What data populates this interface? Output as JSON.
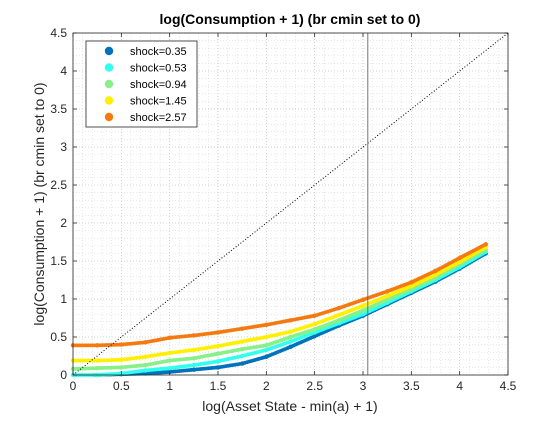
{
  "chart_data": {
    "type": "scatter",
    "title": "log(Consumption + 1) (br cmin set to 0)",
    "xlabel": "log(Asset State - min(a) + 1)",
    "ylabel": "log(Consumption + 1) (br cmin set to 0)",
    "xlim": [
      0,
      4.5
    ],
    "ylim": [
      0,
      4.5
    ],
    "xticks": [
      "0",
      "0.5",
      "1",
      "1.5",
      "2",
      "2.5",
      "3",
      "3.5",
      "4",
      "4.5"
    ],
    "yticks": [
      "0",
      "0.5",
      "1",
      "1.5",
      "2",
      "2.5",
      "3",
      "3.5",
      "4",
      "4.5"
    ],
    "grid": "on (major and minor, dotted)",
    "legend_position": "top-left",
    "reference_lines": {
      "diagonal_45_degree": true,
      "vertical_line_x": 3.05
    },
    "x_points_shared": [
      0.0,
      0.25,
      0.5,
      0.75,
      1.0,
      1.25,
      1.5,
      1.75,
      2.0,
      2.25,
      2.5,
      2.75,
      3.0,
      3.25,
      3.5,
      3.75,
      4.0,
      4.27
    ],
    "series": [
      {
        "name": "shock=0.35",
        "color": "#0072BD",
        "x_start": 0.22,
        "y": [
          0.0,
          0.0,
          0.01,
          0.02,
          0.04,
          0.07,
          0.1,
          0.15,
          0.24,
          0.37,
          0.51,
          0.65,
          0.78,
          0.93,
          1.08,
          1.23,
          1.4,
          1.6
        ]
      },
      {
        "name": "shock=0.53",
        "color": "#33FFEE",
        "x_start": 0.0,
        "y": [
          0.0,
          0.0,
          0.02,
          0.06,
          0.09,
          0.13,
          0.18,
          0.25,
          0.33,
          0.44,
          0.56,
          0.68,
          0.8,
          0.95,
          1.1,
          1.25,
          1.42,
          1.62
        ]
      },
      {
        "name": "shock=0.94",
        "color": "#88F088",
        "x_start": 0.0,
        "y": [
          0.08,
          0.09,
          0.1,
          0.13,
          0.19,
          0.22,
          0.28,
          0.34,
          0.39,
          0.5,
          0.6,
          0.72,
          0.85,
          0.99,
          1.13,
          1.28,
          1.46,
          1.65
        ]
      },
      {
        "name": "shock=1.45",
        "color": "#FFF000",
        "x_start": 0.0,
        "y": [
          0.19,
          0.19,
          0.2,
          0.24,
          0.29,
          0.33,
          0.38,
          0.44,
          0.5,
          0.57,
          0.67,
          0.79,
          0.91,
          1.04,
          1.17,
          1.32,
          1.49,
          1.68
        ]
      },
      {
        "name": "shock=2.57",
        "color": "#F47A10",
        "x_start": 0.0,
        "y": [
          0.39,
          0.39,
          0.4,
          0.43,
          0.49,
          0.52,
          0.56,
          0.61,
          0.66,
          0.72,
          0.78,
          0.88,
          0.99,
          1.1,
          1.22,
          1.37,
          1.54,
          1.72
        ]
      }
    ]
  }
}
